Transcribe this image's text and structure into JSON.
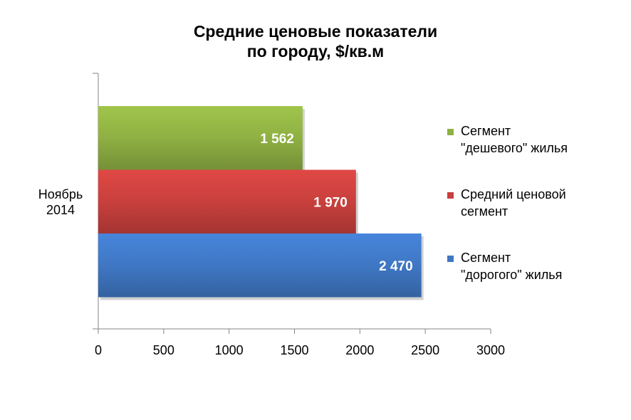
{
  "title": {
    "line1": "Средние ценовые показатели",
    "line2": "по городу, $/кв.м"
  },
  "chart_data": {
    "type": "bar",
    "orientation": "horizontal",
    "title": "Средние ценовые показатели по городу, $/кв.м",
    "categories": [
      "Ноябрь\n2014"
    ],
    "series": [
      {
        "name": "Сегмент \"дешевого\" жилья",
        "values": [
          1562
        ],
        "label": "1 562",
        "color": "#8fb043"
      },
      {
        "name": "Средний ценовой сегмент",
        "values": [
          1970
        ],
        "label": "1 970",
        "color": "#c8403d"
      },
      {
        "name": "Сегмент \"дорогого\" жилья",
        "values": [
          2470
        ],
        "label": "2 470",
        "color": "#3f77c4"
      }
    ],
    "xlim": [
      0,
      3000
    ],
    "xticks": [
      0,
      500,
      1000,
      1500,
      2000,
      2500,
      3000
    ],
    "grid": false,
    "legend": "right"
  },
  "legend": {
    "items": [
      {
        "label": "Сегмент\n\"дешевого\" жилья",
        "color": "#8fb043"
      },
      {
        "label": "Средний ценовой\nсегмент",
        "color": "#c8403d"
      },
      {
        "label": "Сегмент\n\"дорогого\" жилья",
        "color": "#3f77c4"
      }
    ]
  }
}
